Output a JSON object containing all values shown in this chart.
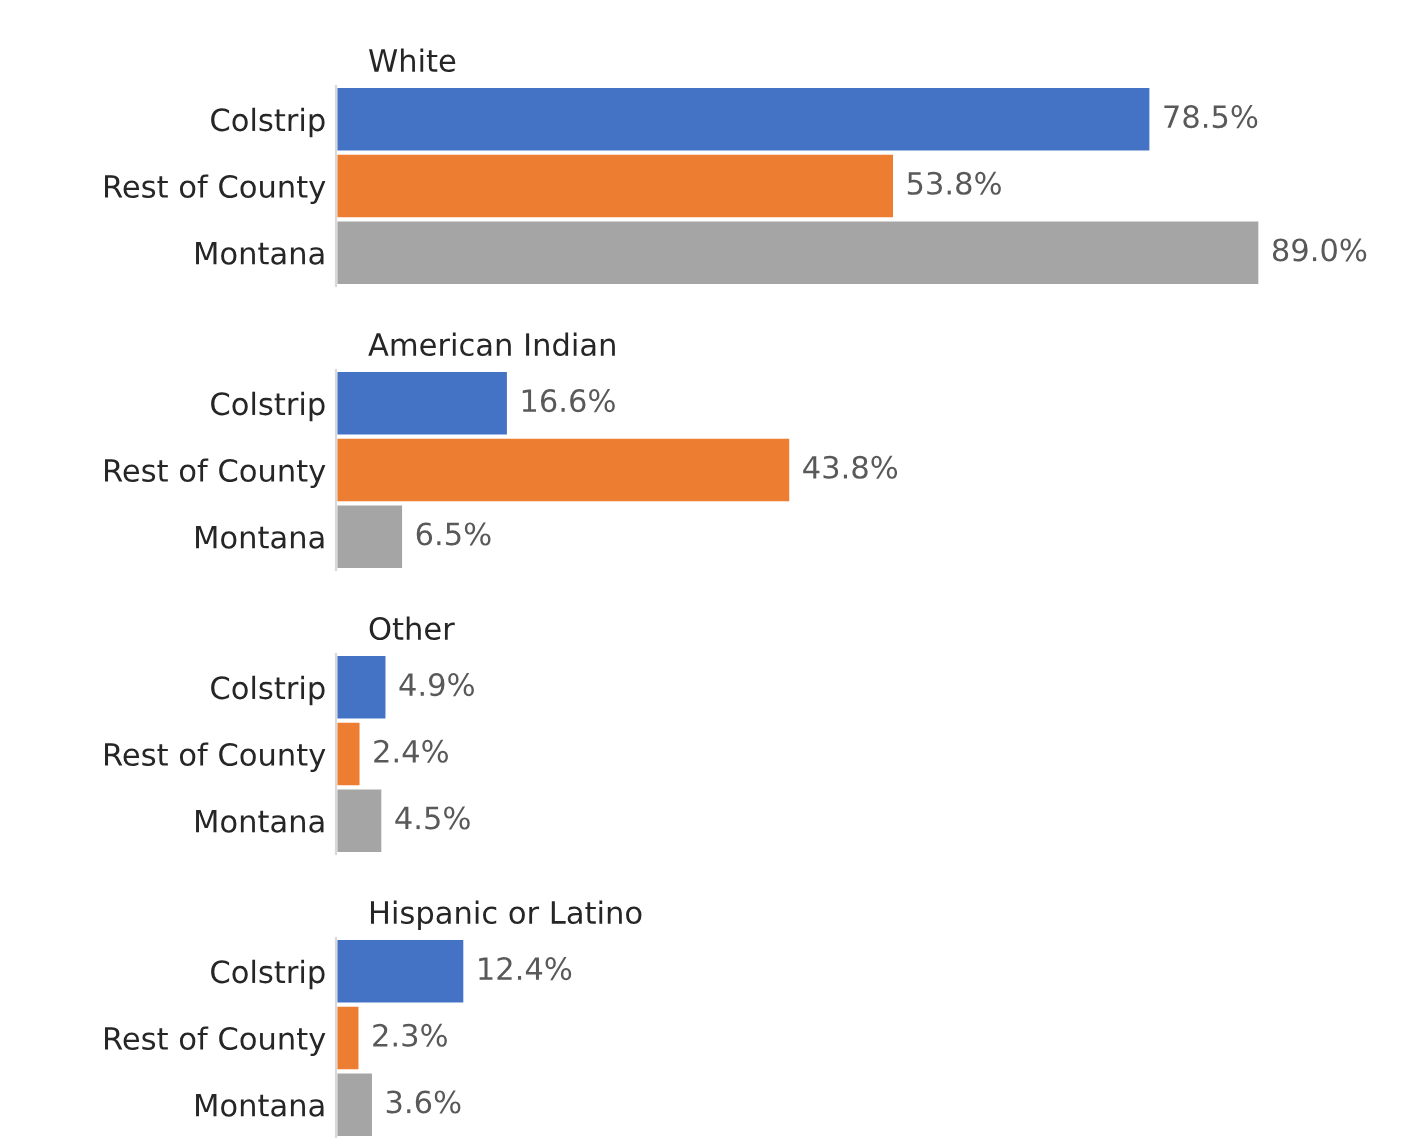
{
  "chart_data": [
    {
      "type": "bar",
      "orientation": "horizontal",
      "title": "White",
      "categories": [
        "Colstrip",
        "Rest of County",
        "Montana"
      ],
      "values": [
        78.5,
        53.8,
        89.0
      ],
      "colors": [
        "#4472c4",
        "#ed7d31",
        "#a5a5a5"
      ],
      "value_labels": [
        "78.5%",
        "53.8%",
        "89.0%"
      ],
      "tick_labels": "y",
      "grid": false,
      "legend": false
    },
    {
      "type": "bar",
      "orientation": "horizontal",
      "title": "American Indian",
      "categories": [
        "Colstrip",
        "Rest of County",
        "Montana"
      ],
      "values": [
        16.6,
        43.8,
        6.5
      ],
      "colors": [
        "#4472c4",
        "#ed7d31",
        "#a5a5a5"
      ],
      "value_labels": [
        "16.6%",
        "43.8%",
        "6.5%"
      ],
      "tick_labels": "y",
      "grid": false,
      "legend": false
    },
    {
      "type": "bar",
      "orientation": "horizontal",
      "title": "Other",
      "categories": [
        "Colstrip",
        "Rest of County",
        "Montana"
      ],
      "values": [
        4.9,
        2.4,
        4.5
      ],
      "colors": [
        "#4472c4",
        "#ed7d31",
        "#a5a5a5"
      ],
      "value_labels": [
        "4.9%",
        "2.4%",
        "4.5%"
      ],
      "tick_labels": "y",
      "grid": false,
      "legend": false
    },
    {
      "type": "bar",
      "orientation": "horizontal",
      "title": "Hispanic or Latino",
      "categories": [
        "Colstrip",
        "Rest of County",
        "Montana"
      ],
      "values": [
        12.4,
        2.3,
        3.6
      ],
      "colors": [
        "#4472c4",
        "#ed7d31",
        "#a5a5a5"
      ],
      "value_labels": [
        "12.4%",
        "2.3%",
        "3.6%"
      ],
      "tick_labels": "y",
      "grid": false,
      "legend": false
    }
  ]
}
